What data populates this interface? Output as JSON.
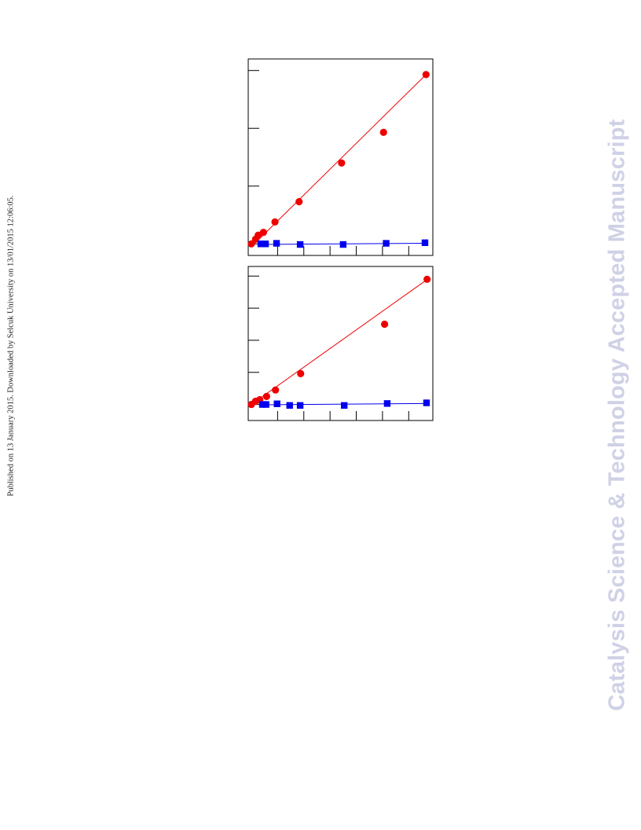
{
  "side_note": {
    "published": "Published on 13 January 2015.",
    "downloaded": "Downloaded by Selcuk University on 13/01/2015 12:06:05."
  },
  "watermark": {
    "text": "Catalysis Science & Technology Accepted Manuscript",
    "color": "#cfd1e6"
  },
  "colors": {
    "series_a": "#ee0000",
    "series_b": "#0000ee"
  },
  "chart_data": [
    {
      "type": "scatter",
      "title": "",
      "xlabel": "",
      "ylabel": "",
      "xlim": [
        0,
        34
      ],
      "ylim": [
        -0.2,
        3.2
      ],
      "grid": false,
      "series": [
        {
          "marker": "circle",
          "color": "#ee0000",
          "x": [
            0,
            0.8,
            1.3,
            2.3,
            4.5,
            9.1,
            17.2,
            25.2,
            33.3
          ],
          "y": [
            0,
            0.08,
            0.15,
            0.2,
            0.38,
            0.73,
            1.4,
            1.93,
            2.93
          ]
        },
        {
          "marker": "square",
          "color": "#0000ee",
          "x": [
            1.8,
            2.7,
            4.8,
            9.3,
            17.5,
            25.7,
            33.1
          ],
          "y": [
            0,
            0,
            0.01,
            -0.01,
            -0.01,
            0.01,
            0.02
          ]
        }
      ],
      "fits": [
        {
          "color": "#ee0000",
          "x": [
            0,
            33.3
          ],
          "y": [
            -0.05,
            2.93
          ]
        },
        {
          "color": "#0000ee",
          "x": [
            1.8,
            33.1
          ],
          "y": [
            -0.01,
            0.01
          ]
        }
      ]
    },
    {
      "type": "scatter",
      "title": "",
      "xlabel": "",
      "ylabel": "",
      "xlim": [
        0,
        34
      ],
      "ylim": [
        -0.5,
        4.3
      ],
      "grid": false,
      "series": [
        {
          "marker": "circle",
          "color": "#ee0000",
          "x": [
            0,
            0.8,
            1.6,
            2.9,
            4.6,
            9.4,
            25.4,
            33.5
          ],
          "y": [
            0,
            0.1,
            0.15,
            0.25,
            0.45,
            0.96,
            2.5,
            3.9
          ]
        },
        {
          "marker": "square",
          "color": "#0000ee",
          "x": [
            2.1,
            2.8,
            4.9,
            7.3,
            9.3,
            17.7,
            25.9,
            33.4
          ],
          "y": [
            0,
            0,
            0.02,
            -0.03,
            -0.03,
            -0.03,
            0.03,
            0.05
          ]
        }
      ],
      "fits": [
        {
          "color": "#ee0000",
          "x": [
            0,
            34
          ],
          "y": [
            0,
            3.95
          ]
        },
        {
          "color": "#0000ee",
          "x": [
            2.1,
            33.4
          ],
          "y": [
            -0.01,
            0.03
          ]
        }
      ]
    }
  ]
}
